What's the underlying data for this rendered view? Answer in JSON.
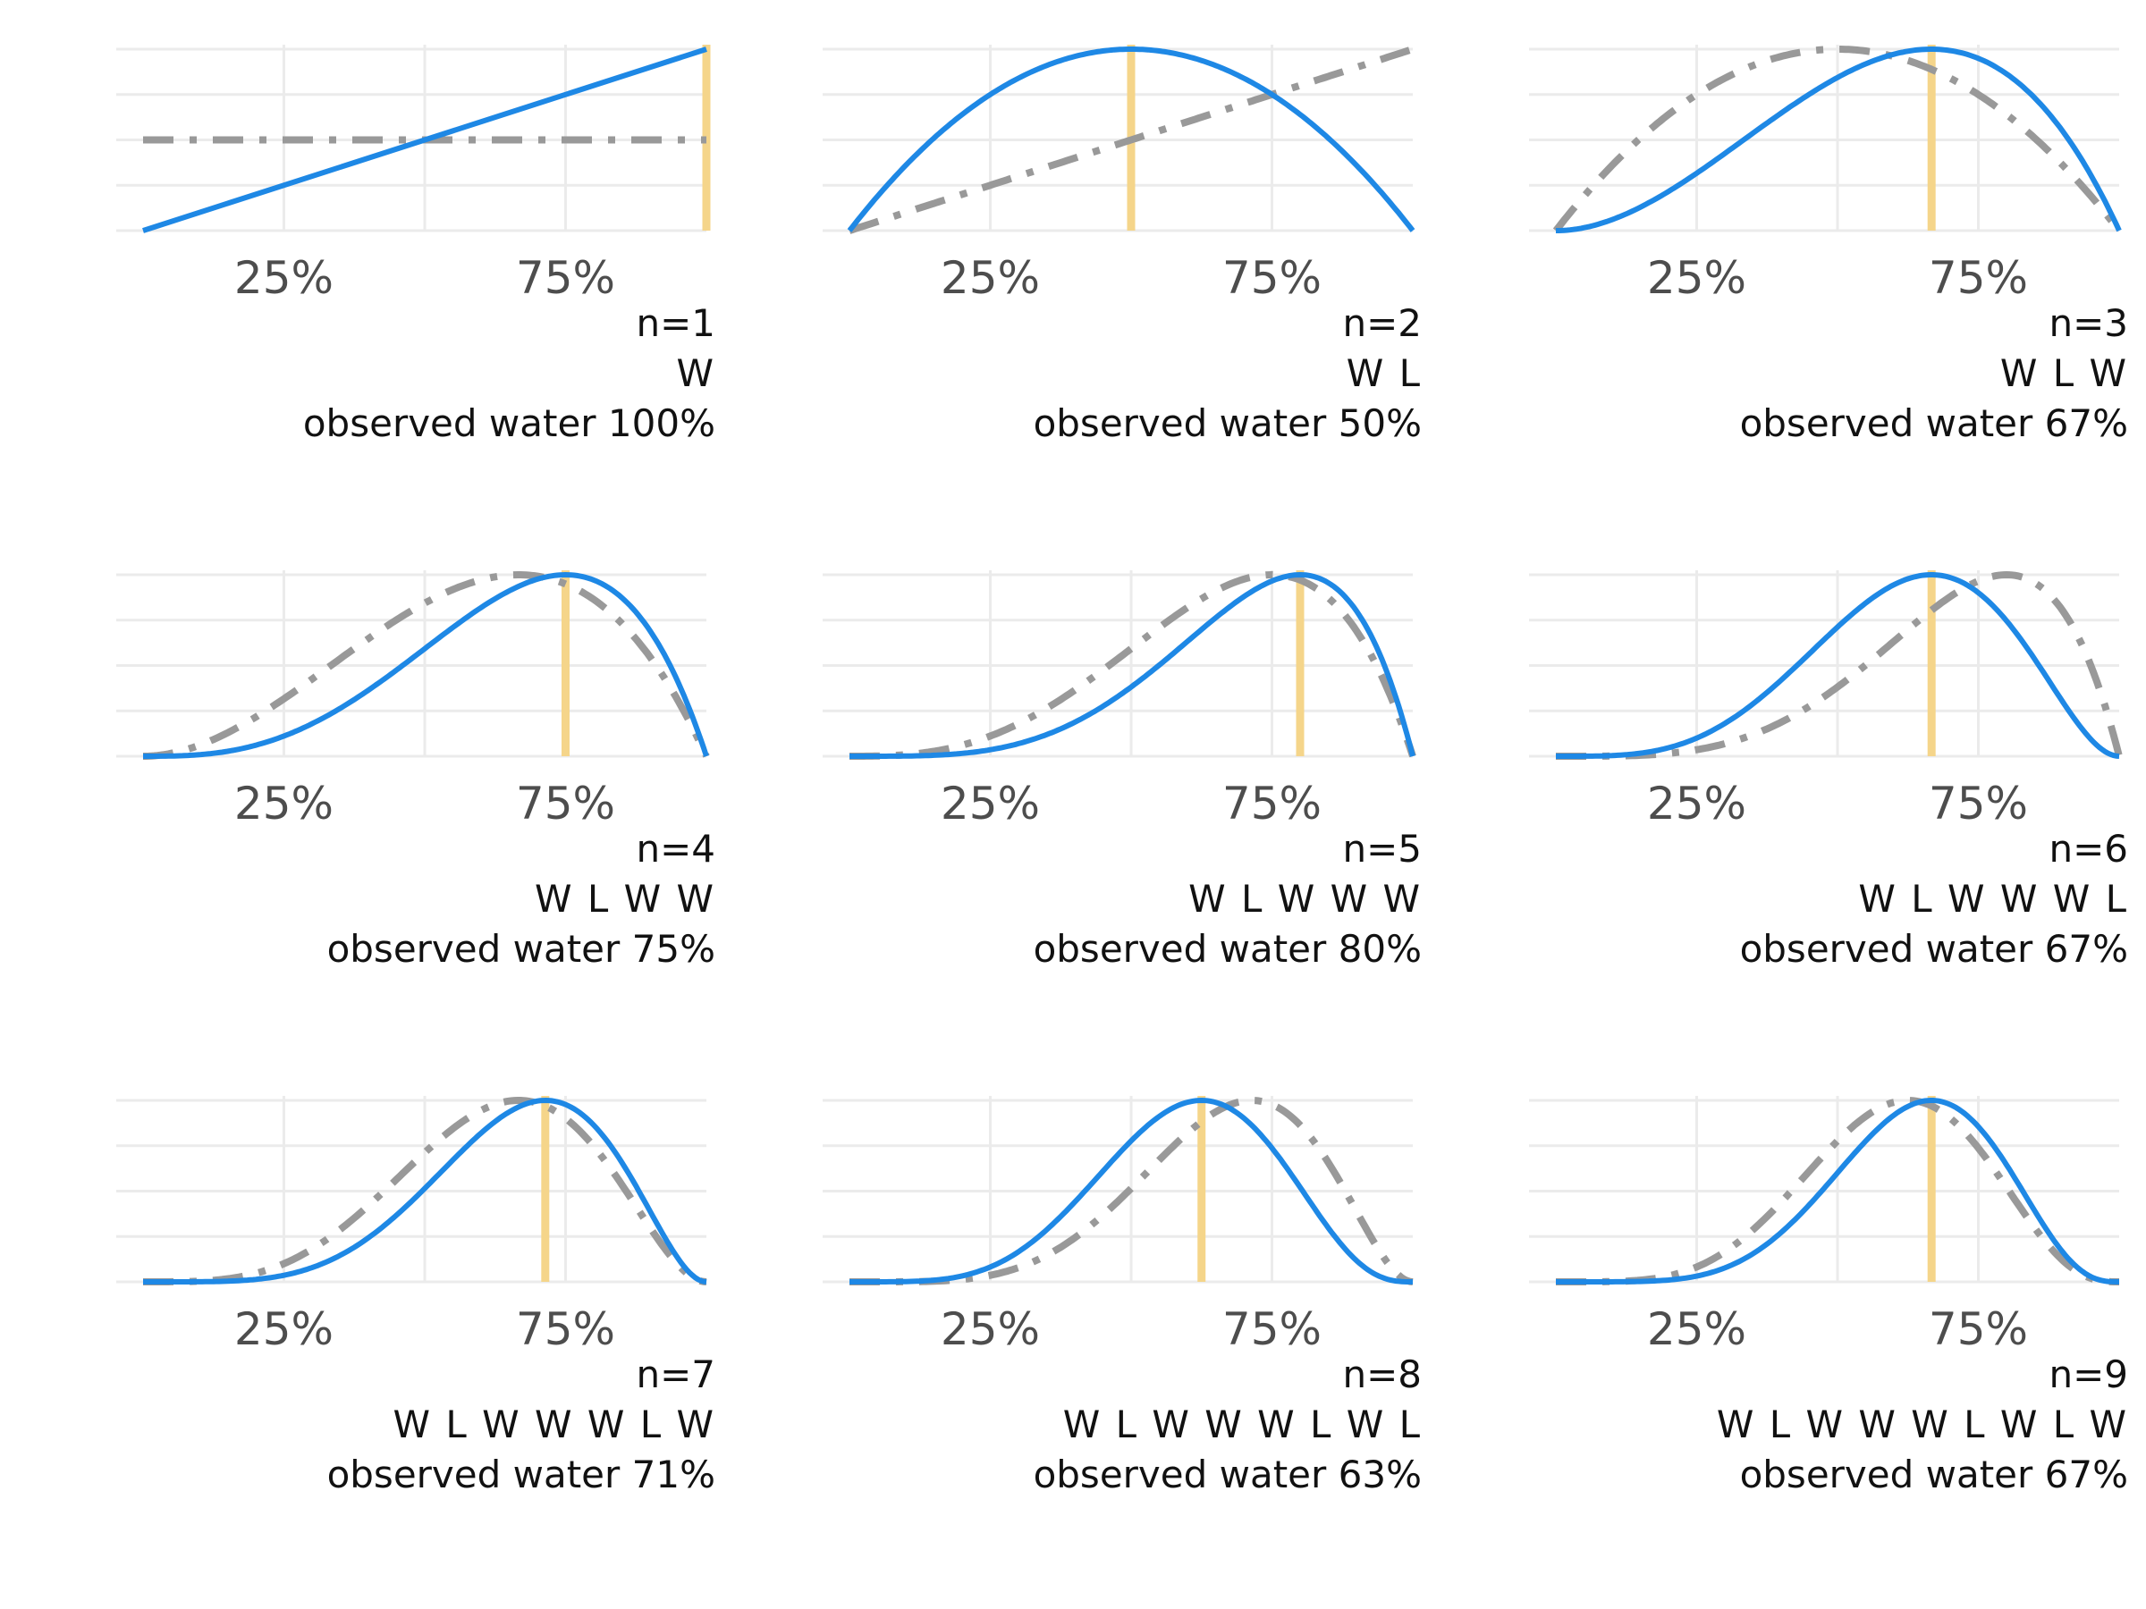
{
  "chart_data": [
    {
      "type": "line",
      "panel": "n=1",
      "sequence": "W L W W W L W L W",
      "n_label": "n=1",
      "sequence_label": "W",
      "observed_label": "observed water 100%",
      "x_tick_labels": [
        "25%",
        "75%"
      ],
      "xlim": [
        0,
        1
      ],
      "grid": true,
      "series": [
        {
          "color": "#1e88e5",
          "values_at": {
            "x": [
              0,
              1
            ],
            "y": [
              0,
              2
            ]
          }
        },
        {
          "color": "#999999",
          "style": "dash-dot",
          "values_at": {
            "x": [
              0,
              1
            ],
            "y": [
              1,
              1
            ]
          }
        }
      ],
      "observed_proportion": 1.0
    },
    {
      "type": "line",
      "n_label": "n=2",
      "sequence_label": "W L",
      "observed_label": "observed water 50%",
      "x_tick_labels": [
        "25%",
        "75%"
      ],
      "xlim": [
        0,
        1
      ],
      "grid": true,
      "observed_proportion": 0.5
    },
    {
      "type": "line",
      "n_label": "n=3",
      "sequence_label": "W L W",
      "observed_label": "observed water 67%",
      "x_tick_labels": [
        "25%",
        "75%"
      ],
      "xlim": [
        0,
        1
      ],
      "grid": true,
      "observed_proportion": 0.667
    },
    {
      "type": "line",
      "n_label": "n=4",
      "sequence_label": "W L W W",
      "observed_label": "observed water 75%",
      "x_tick_labels": [
        "25%",
        "75%"
      ],
      "xlim": [
        0,
        1
      ],
      "grid": true,
      "observed_proportion": 0.75
    },
    {
      "type": "line",
      "n_label": "n=5",
      "sequence_label": "W L W W W",
      "observed_label": "observed water 80%",
      "x_tick_labels": [
        "25%",
        "75%"
      ],
      "xlim": [
        0,
        1
      ],
      "grid": true,
      "observed_proportion": 0.8
    },
    {
      "type": "line",
      "n_label": "n=6",
      "sequence_label": "W L W W W L",
      "observed_label": "observed water 67%",
      "x_tick_labels": [
        "25%",
        "75%"
      ],
      "xlim": [
        0,
        1
      ],
      "grid": true,
      "observed_proportion": 0.667
    },
    {
      "type": "line",
      "n_label": "n=7",
      "sequence_label": "W L W W W L W",
      "observed_label": "observed water 71%",
      "x_tick_labels": [
        "25%",
        "75%"
      ],
      "xlim": [
        0,
        1
      ],
      "grid": true,
      "observed_proportion": 0.714
    },
    {
      "type": "line",
      "n_label": "n=8",
      "sequence_label": "W L W W W L W L",
      "observed_label": "observed water 63%",
      "x_tick_labels": [
        "25%",
        "75%"
      ],
      "xlim": [
        0,
        1
      ],
      "grid": true,
      "observed_proportion": 0.625
    },
    {
      "type": "line",
      "n_label": "n=9",
      "sequence_label": "W L W W W L W L W",
      "observed_label": "observed water 67%",
      "x_tick_labels": [
        "25%",
        "75%"
      ],
      "xlim": [
        0,
        1
      ],
      "grid": true,
      "observed_proportion": 0.667
    }
  ],
  "colors": {
    "posterior": "#1e88e5",
    "prior": "#999999",
    "observed": "#f5d58a",
    "grid": "#ebebeb"
  }
}
